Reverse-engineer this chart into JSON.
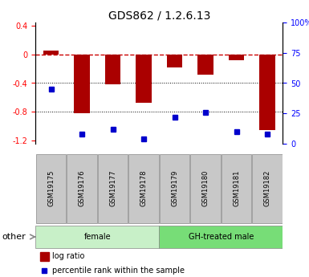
{
  "title": "GDS862 / 1.2.6.13",
  "samples": [
    "GSM19175",
    "GSM19176",
    "GSM19177",
    "GSM19178",
    "GSM19179",
    "GSM19180",
    "GSM19181",
    "GSM19182"
  ],
  "log_ratio": [
    0.05,
    -0.82,
    -0.42,
    -0.67,
    -0.18,
    -0.28,
    -0.08,
    -1.05
  ],
  "percentile_rank": [
    45,
    8,
    12,
    4,
    22,
    26,
    10,
    8
  ],
  "groups": [
    {
      "label": "female",
      "start": 0,
      "end": 4,
      "color": "#c8f0c8"
    },
    {
      "label": "GH-treated male",
      "start": 4,
      "end": 8,
      "color": "#77dd77"
    }
  ],
  "ylim_left": [
    -1.25,
    0.45
  ],
  "ylim_right": [
    0,
    100
  ],
  "yticks_left": [
    -1.2,
    -0.8,
    -0.4,
    0.0,
    0.4
  ],
  "yticks_right": [
    0,
    25,
    50,
    75,
    100
  ],
  "bar_color": "#aa0000",
  "dot_color": "#0000cc",
  "zero_line_color": "#cc0000",
  "bar_width": 0.5,
  "sample_box_color": "#c8c8c8",
  "other_label": "other",
  "legend_bar_label": "log ratio",
  "legend_dot_label": "percentile rank within the sample",
  "title_fontsize": 10,
  "tick_fontsize": 7,
  "label_fontsize": 6,
  "group_fontsize": 7,
  "legend_fontsize": 7
}
